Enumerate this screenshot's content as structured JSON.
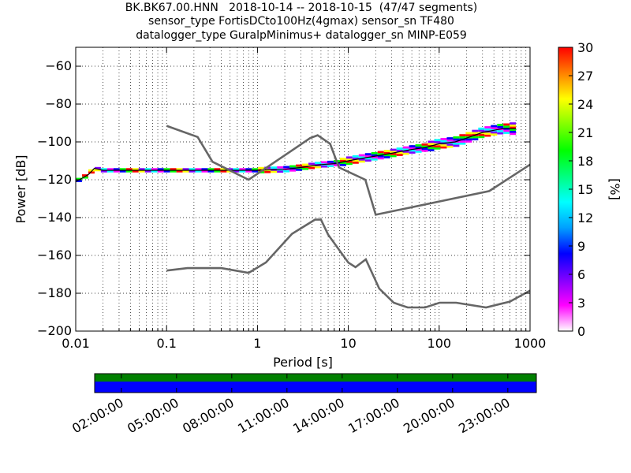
{
  "header": {
    "title_lines": [
      "BK.BK67.00.HNN   2018-10-14 -- 2018-10-15  (47/47 segments)",
      "sensor_type FortisDCto100Hz(4gmax) sensor_sn TF480",
      "datalogger_type GuralpMinimus+ datalogger_sn MINP-E059"
    ]
  },
  "chart_data": {
    "type": "heatmap",
    "xlabel": "Period [s]",
    "ylabel": "Power [dB]",
    "x_scale": "log",
    "xlim": [
      0.01,
      1000
    ],
    "ylim": [
      -200,
      -50
    ],
    "x_ticks": [
      0.01,
      0.1,
      1,
      10,
      100,
      1000
    ],
    "x_tick_labels": [
      "0.01",
      "0.1",
      "1",
      "10",
      "100",
      "1000"
    ],
    "y_ticks": [
      -200,
      -180,
      -160,
      -140,
      -120,
      -100,
      -80,
      -60
    ],
    "y_tick_labels": [
      "−200",
      "−180",
      "−160",
      "−140",
      "−120",
      "−100",
      "−80",
      "−60"
    ],
    "grid": "dotted",
    "colorbar": {
      "label": "[%]",
      "range": [
        0,
        30
      ],
      "ticks": [
        0,
        3,
        6,
        9,
        12,
        15,
        18,
        21,
        24,
        27,
        30
      ],
      "tick_labels": [
        "0",
        "3",
        "6",
        "9",
        "12",
        "15",
        "18",
        "21",
        "24",
        "27",
        "30"
      ],
      "colors": [
        "#ffffff",
        "#ff00ff",
        "#8000ff",
        "#0000ff",
        "#00a0ff",
        "#00ffff",
        "#00ff80",
        "#00ff00",
        "#80ff00",
        "#ffff00",
        "#ff8000",
        "#ff0000"
      ]
    },
    "model_color": "#666666",
    "density_colors": [
      "#0000ff",
      "#00ff00",
      "#ff0000",
      "#ffff00",
      "#8000ff",
      "#00ffff",
      "#ff00ff"
    ],
    "mode_line": {
      "x": [
        0.01,
        0.012,
        0.014,
        0.016,
        0.02,
        0.05,
        0.1,
        0.2,
        0.5,
        1,
        2,
        3,
        5,
        7,
        10,
        15,
        20,
        30,
        50,
        70,
        100,
        150,
        200,
        300,
        500,
        700
      ],
      "y": [
        -121,
        -119,
        -117,
        -114,
        -115,
        -115,
        -115,
        -115,
        -115,
        -115,
        -114.5,
        -113.5,
        -112,
        -111.5,
        -110,
        -108.5,
        -107.5,
        -106,
        -104,
        -103,
        -101,
        -100,
        -98,
        -95,
        -93,
        -93
      ]
    },
    "nlnm": {
      "x": [
        0.1,
        0.17,
        0.4,
        0.8,
        1.24,
        2.4,
        4.3,
        5.0,
        6.0,
        10.0,
        12.0,
        15.6,
        21.9,
        31.6,
        45.0,
        70.0,
        101.0,
        154.0,
        328.0,
        600.0,
        1000.0
      ],
      "y": [
        -168,
        -166.7,
        -166.7,
        -169.2,
        -163.7,
        -148.6,
        -141.1,
        -141.1,
        -149.0,
        -163.8,
        -166.2,
        -162.1,
        -177.5,
        -185.0,
        -187.5,
        -187.5,
        -185.0,
        -185.0,
        -187.5,
        -184.4,
        -178.6
      ]
    },
    "nhnm": {
      "x": [
        0.1,
        0.22,
        0.32,
        0.8,
        3.8,
        4.6,
        6.3,
        7.9,
        15.4,
        20.0,
        354.8,
        1000.0
      ],
      "y": [
        -91.5,
        -97.4,
        -110.5,
        -120.0,
        -98.0,
        -96.5,
        -101.0,
        -113.5,
        -120.0,
        -138.5,
        -126.0,
        -112.0
      ]
    }
  },
  "time_strip": {
    "tick_labels": [
      "02:00:00",
      "05:00:00",
      "08:00:00",
      "11:00:00",
      "14:00:00",
      "17:00:00",
      "20:00:00",
      "23:00:00"
    ],
    "top_color": "#008000",
    "bottom_color": "#0000ff"
  }
}
